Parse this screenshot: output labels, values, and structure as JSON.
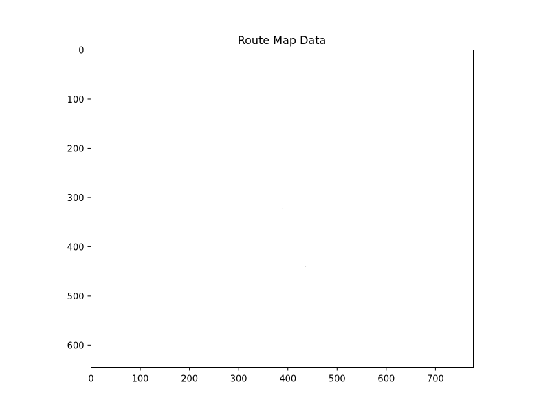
{
  "chart_data": {
    "type": "scatter",
    "title": "Route Map Data",
    "xlabel": "",
    "ylabel": "",
    "xlim": [
      0,
      777
    ],
    "ylim": [
      645,
      0
    ],
    "y_inverted": true,
    "grid": false,
    "x_ticks": [
      0,
      100,
      200,
      300,
      400,
      500,
      600,
      700
    ],
    "y_ticks": [
      0,
      100,
      200,
      300,
      400,
      500,
      600
    ],
    "series": [
      {
        "points": [
          {
            "x": 474,
            "y": 179
          },
          {
            "x": 389,
            "y": 323
          },
          {
            "x": 436,
            "y": 440
          }
        ]
      }
    ],
    "colors": {
      "background": "#ffffff",
      "axes": "#000000",
      "points": "#b5b5b5"
    }
  }
}
